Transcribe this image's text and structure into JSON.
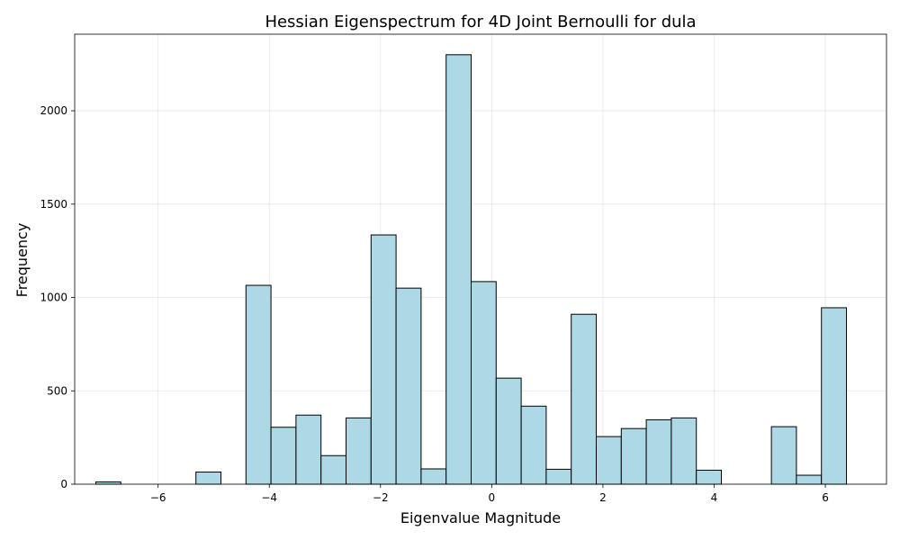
{
  "chart_data": {
    "type": "bar",
    "title": "Hessian Eigenspectrum for 4D Joint Bernoulli for dula",
    "xlabel": "Eigenvalue Magnitude",
    "ylabel": "Frequency",
    "xlim": [
      -7.5,
      7.1
    ],
    "ylim": [
      0,
      2410
    ],
    "x_ticks": [
      -6,
      -4,
      -2,
      0,
      2,
      4,
      6
    ],
    "x_tick_labels": [
      "−6",
      "−4",
      "−2",
      "0",
      "2",
      "4",
      "6"
    ],
    "y_ticks": [
      0,
      500,
      1000,
      1500,
      2000
    ],
    "y_tick_labels": [
      "0",
      "500",
      "1000",
      "1500",
      "2000"
    ],
    "grid": true,
    "bar_color": "#add8e6",
    "edge_color": "#000000",
    "bins": [
      {
        "x0": -7.12,
        "x1": -6.67,
        "value": 12
      },
      {
        "x0": -6.67,
        "x1": -6.22,
        "value": 0
      },
      {
        "x0": -6.22,
        "x1": -5.77,
        "value": 0
      },
      {
        "x0": -5.77,
        "x1": -5.32,
        "value": 0
      },
      {
        "x0": -5.32,
        "x1": -4.87,
        "value": 65
      },
      {
        "x0": -4.87,
        "x1": -4.42,
        "value": 0
      },
      {
        "x0": -4.42,
        "x1": -3.97,
        "value": 1065
      },
      {
        "x0": -3.97,
        "x1": -3.52,
        "value": 305
      },
      {
        "x0": -3.52,
        "x1": -3.07,
        "value": 370
      },
      {
        "x0": -3.07,
        "x1": -2.62,
        "value": 153
      },
      {
        "x0": -2.62,
        "x1": -2.17,
        "value": 355
      },
      {
        "x0": -2.17,
        "x1": -1.72,
        "value": 1335
      },
      {
        "x0": -1.72,
        "x1": -1.27,
        "value": 1050
      },
      {
        "x0": -1.27,
        "x1": -0.82,
        "value": 82
      },
      {
        "x0": -0.82,
        "x1": -0.37,
        "value": 2300
      },
      {
        "x0": -0.37,
        "x1": 0.08,
        "value": 1085
      },
      {
        "x0": 0.08,
        "x1": 0.53,
        "value": 568
      },
      {
        "x0": 0.53,
        "x1": 0.98,
        "value": 418
      },
      {
        "x0": 0.98,
        "x1": 1.43,
        "value": 80
      },
      {
        "x0": 1.43,
        "x1": 1.88,
        "value": 910
      },
      {
        "x0": 1.88,
        "x1": 2.33,
        "value": 255
      },
      {
        "x0": 2.33,
        "x1": 2.78,
        "value": 298
      },
      {
        "x0": 2.78,
        "x1": 3.23,
        "value": 345
      },
      {
        "x0": 3.23,
        "x1": 3.68,
        "value": 355
      },
      {
        "x0": 3.68,
        "x1": 4.13,
        "value": 75
      },
      {
        "x0": 4.13,
        "x1": 4.58,
        "value": 0
      },
      {
        "x0": 4.58,
        "x1": 5.03,
        "value": 0
      },
      {
        "x0": 5.03,
        "x1": 5.48,
        "value": 308
      },
      {
        "x0": 5.48,
        "x1": 5.93,
        "value": 48
      },
      {
        "x0": 5.93,
        "x1": 6.38,
        "value": 945
      }
    ]
  }
}
